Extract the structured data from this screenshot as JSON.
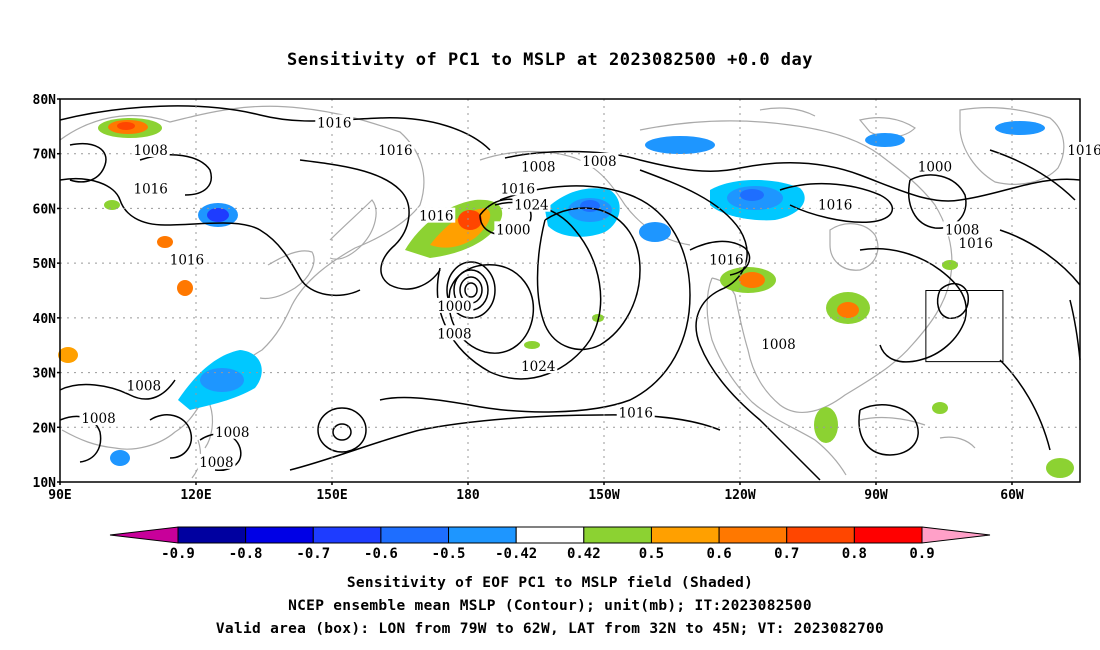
{
  "title": "Sensitivity of PC1 to MSLP at 2023082500 +0.0 day",
  "map": {
    "lat_labels": [
      "80N",
      "70N",
      "60N",
      "50N",
      "40N",
      "30N",
      "20N",
      "10N"
    ],
    "lon_labels": [
      "90E",
      "120E",
      "150E",
      "180",
      "150W",
      "120W",
      "90W",
      "60W"
    ],
    "lon_range": [
      90,
      315
    ],
    "lat_range": [
      10,
      80
    ],
    "isobar_labels": [
      {
        "text": "1016",
        "lon": 150.5,
        "lat": 75.5
      },
      {
        "text": "1008",
        "lon": 110,
        "lat": 70.5
      },
      {
        "text": "1016",
        "lon": 164,
        "lat": 70.5
      },
      {
        "text": "1008",
        "lon": 209,
        "lat": 68.5
      },
      {
        "text": "1008",
        "lon": 195.5,
        "lat": 67.5
      },
      {
        "text": "1016",
        "lon": 110,
        "lat": 63.5
      },
      {
        "text": "1016",
        "lon": 191,
        "lat": 63.5
      },
      {
        "text": "1000",
        "lon": 283,
        "lat": 67.5
      },
      {
        "text": "1016",
        "lon": 316,
        "lat": 70.5
      },
      {
        "text": "1024",
        "lon": 194,
        "lat": 60.5
      },
      {
        "text": "1016",
        "lon": 261,
        "lat": 60.5
      },
      {
        "text": "1016",
        "lon": 173,
        "lat": 58.5
      },
      {
        "text": "1000",
        "lon": 190,
        "lat": 56
      },
      {
        "text": "1008",
        "lon": 289,
        "lat": 56
      },
      {
        "text": "1016",
        "lon": 292,
        "lat": 53.5
      },
      {
        "text": "1016",
        "lon": 118,
        "lat": 50.5
      },
      {
        "text": "1016",
        "lon": 237,
        "lat": 50.5
      },
      {
        "text": "1000",
        "lon": 177,
        "lat": 42
      },
      {
        "text": "1008",
        "lon": 177,
        "lat": 37
      },
      {
        "text": "1008",
        "lon": 248.5,
        "lat": 35
      },
      {
        "text": "1024",
        "lon": 195.5,
        "lat": 31
      },
      {
        "text": "1008",
        "lon": 108.5,
        "lat": 27.5
      },
      {
        "text": "1016",
        "lon": 217,
        "lat": 22.5
      },
      {
        "text": "1008",
        "lon": 98.5,
        "lat": 21.5
      },
      {
        "text": "1008",
        "lon": 128,
        "lat": 19
      },
      {
        "text": "1008",
        "lon": 124.5,
        "lat": 13.5
      }
    ],
    "valid_box": {
      "lon_min": 281,
      "lon_max": 298,
      "lat_min": 32,
      "lat_max": 45
    }
  },
  "colorbar": {
    "labels": [
      "-0.9",
      "-0.8",
      "-0.7",
      "-0.6",
      "-0.5",
      "-0.42",
      "0.42",
      "0.5",
      "0.6",
      "0.7",
      "0.8",
      "0.9"
    ],
    "colors": [
      "#0000a0",
      "#0000e6",
      "#1e3cff",
      "#1e6eff",
      "#1e96ff",
      "#00c8ff",
      "#ffffff",
      "#8cd232",
      "#ffa000",
      "#ff7800",
      "#ff4600",
      "#ff0000"
    ],
    "end_low_color": "#c8009a",
    "end_high_color": "#ffa0c8"
  },
  "captions": [
    "Sensitivity of EOF PC1 to MSLP field (Shaded)",
    "NCEP ensemble mean MSLP (Contour); unit(mb); IT:2023082500",
    "Valid area (box): LON from 79W to 62W, LAT from 32N to 45N; VT: 2023082700"
  ]
}
